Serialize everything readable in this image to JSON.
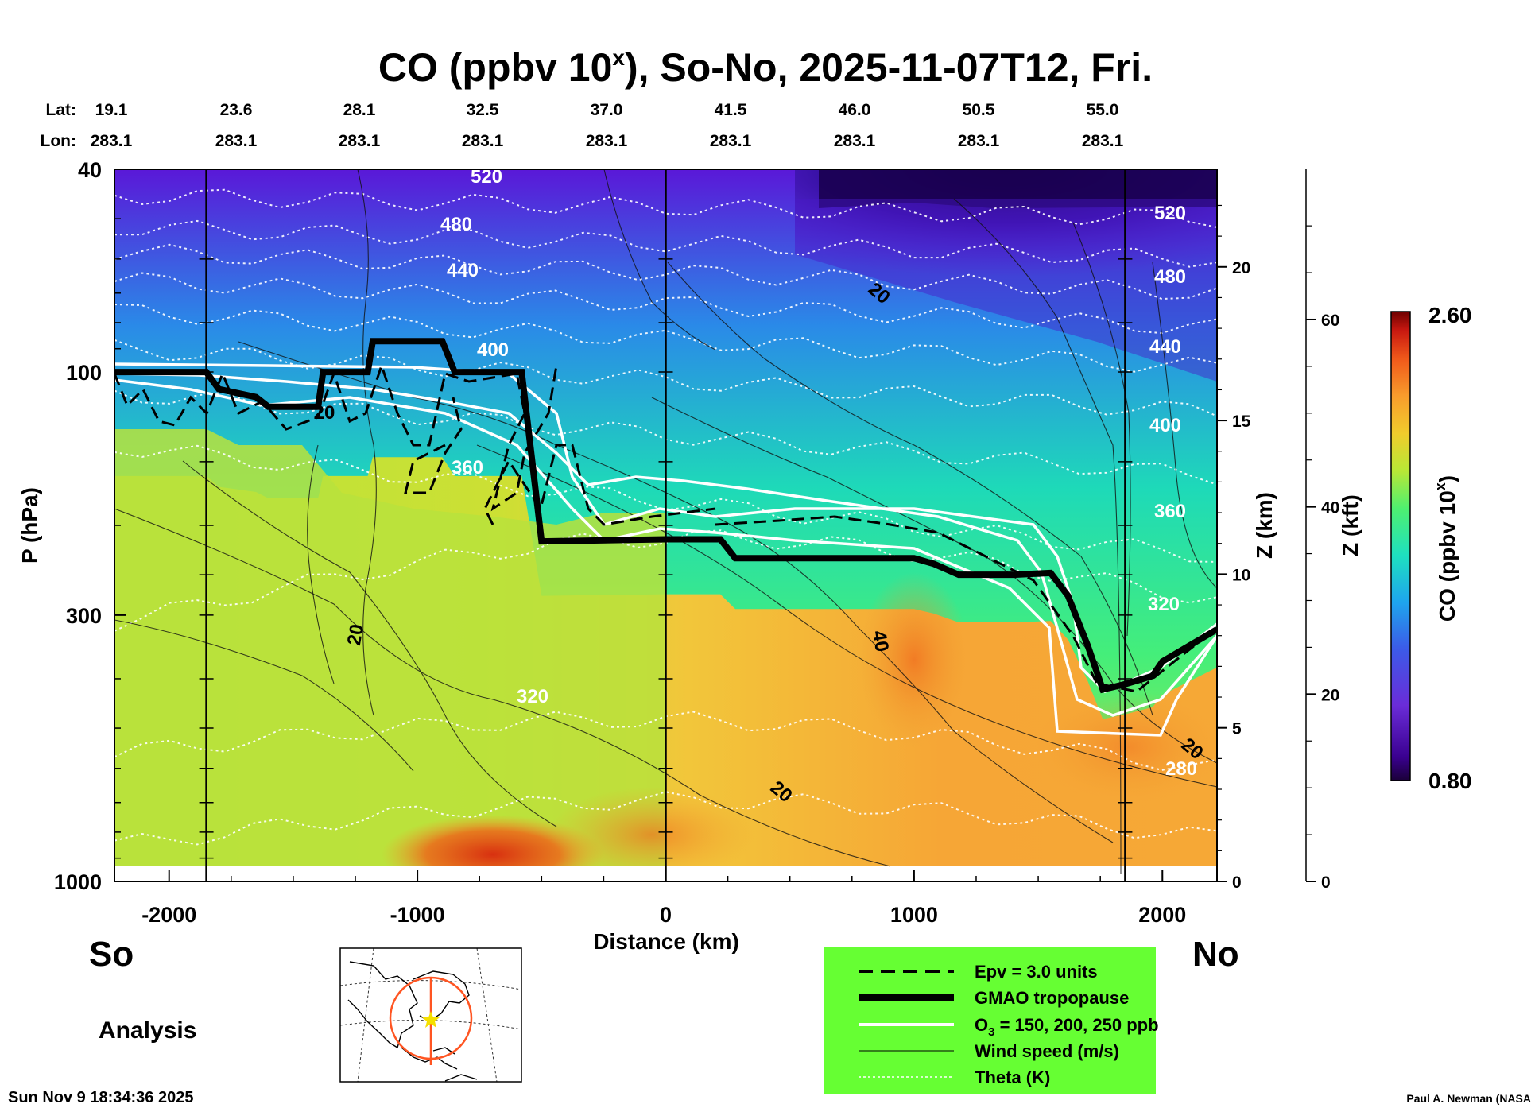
{
  "title_main": "CO (ppbv 10",
  "title_sup": "x",
  "title_rest": "), So-No, 2025-11-07T12, Fri.",
  "header": {
    "lat_label": "Lat:",
    "lon_label": "Lon:",
    "lat": [
      "19.1",
      "23.6",
      "28.1",
      "32.5",
      "37.0",
      "41.5",
      "46.0",
      "50.5",
      "55.0"
    ],
    "lon": [
      "283.1",
      "283.1",
      "283.1",
      "283.1",
      "283.1",
      "283.1",
      "283.1",
      "283.1",
      "283.1"
    ]
  },
  "chart_data": {
    "type": "heatmap",
    "title": "CO (ppbv 10^x), So-No, 2025-11-07T12, Fri.",
    "xlabel": "Distance (km)",
    "ylabel": "P (hPa)",
    "xlim": [
      -2220,
      2220
    ],
    "ylim": [
      1000,
      40
    ],
    "yscale": "log",
    "xticks": [
      -2000,
      -1000,
      0,
      1000,
      2000
    ],
    "xtick_labels": [
      "-2000",
      "-1000",
      "0",
      "1000",
      "2000"
    ],
    "yticks": [
      40,
      100,
      300,
      1000
    ],
    "ytick_labels": [
      "40",
      "100",
      "300",
      "1000"
    ],
    "z_km_ticks": [
      0,
      5,
      10,
      15,
      20
    ],
    "z_km_labels": [
      "0",
      "5",
      "10",
      "15",
      "20"
    ],
    "z_km_label": "Z (km)",
    "z_kft_ticks": [
      0,
      20,
      40,
      60
    ],
    "z_kft_labels": [
      "0",
      "20",
      "40",
      "60"
    ],
    "z_kft_label": "Z (kft)",
    "colorbar": {
      "label": "CO (ppbv 10",
      "label_sup": "x",
      "label_end": ")",
      "min_label": "0.80",
      "max_label": "2.60",
      "min": 0.8,
      "max": 2.6
    },
    "theta_labels": [
      "520",
      "480",
      "440",
      "400",
      "360",
      "320",
      "280"
    ],
    "wind_labels": [
      "20",
      "40"
    ],
    "tropopause_km": [
      [
        -2220,
        100
      ],
      [
        -1850,
        100
      ],
      [
        -1800,
        108
      ],
      [
        -1650,
        112
      ],
      [
        -1600,
        117
      ],
      [
        -1400,
        117
      ],
      [
        -1380,
        100
      ],
      [
        -1200,
        100
      ],
      [
        -1180,
        87
      ],
      [
        -900,
        87
      ],
      [
        -850,
        100
      ],
      [
        -600,
        100
      ],
      [
        -580,
        100
      ],
      [
        -500,
        215
      ],
      [
        0,
        213
      ],
      [
        220,
        213
      ],
      [
        280,
        232
      ],
      [
        500,
        232
      ],
      [
        1000,
        232
      ],
      [
        1080,
        238
      ],
      [
        1180,
        250
      ],
      [
        1400,
        250
      ],
      [
        1550,
        248
      ],
      [
        1620,
        275
      ],
      [
        1700,
        345
      ],
      [
        1760,
        420
      ],
      [
        1850,
        410
      ],
      [
        1960,
        395
      ],
      [
        2000,
        370
      ],
      [
        2220,
        320
      ]
    ]
  },
  "bottom": {
    "south": "So",
    "north": "No",
    "analysis": "Analysis",
    "timestamp": "Sun Nov  9 18:34:36 2025",
    "credit": "Paul A. Newman (NASA"
  },
  "legend": [
    {
      "label": "Epv = 3.0 units"
    },
    {
      "label": "GMAO tropopause"
    },
    {
      "label": "O",
      "sub": "3",
      "rest": " = 150, 200, 250 ppb"
    },
    {
      "label": "Wind speed (m/s)"
    },
    {
      "label": "Theta (K)"
    }
  ],
  "colors": {
    "legend_bg": "#66ff33",
    "map_circle": "#ff5522",
    "map_marker": "#f5e000"
  }
}
